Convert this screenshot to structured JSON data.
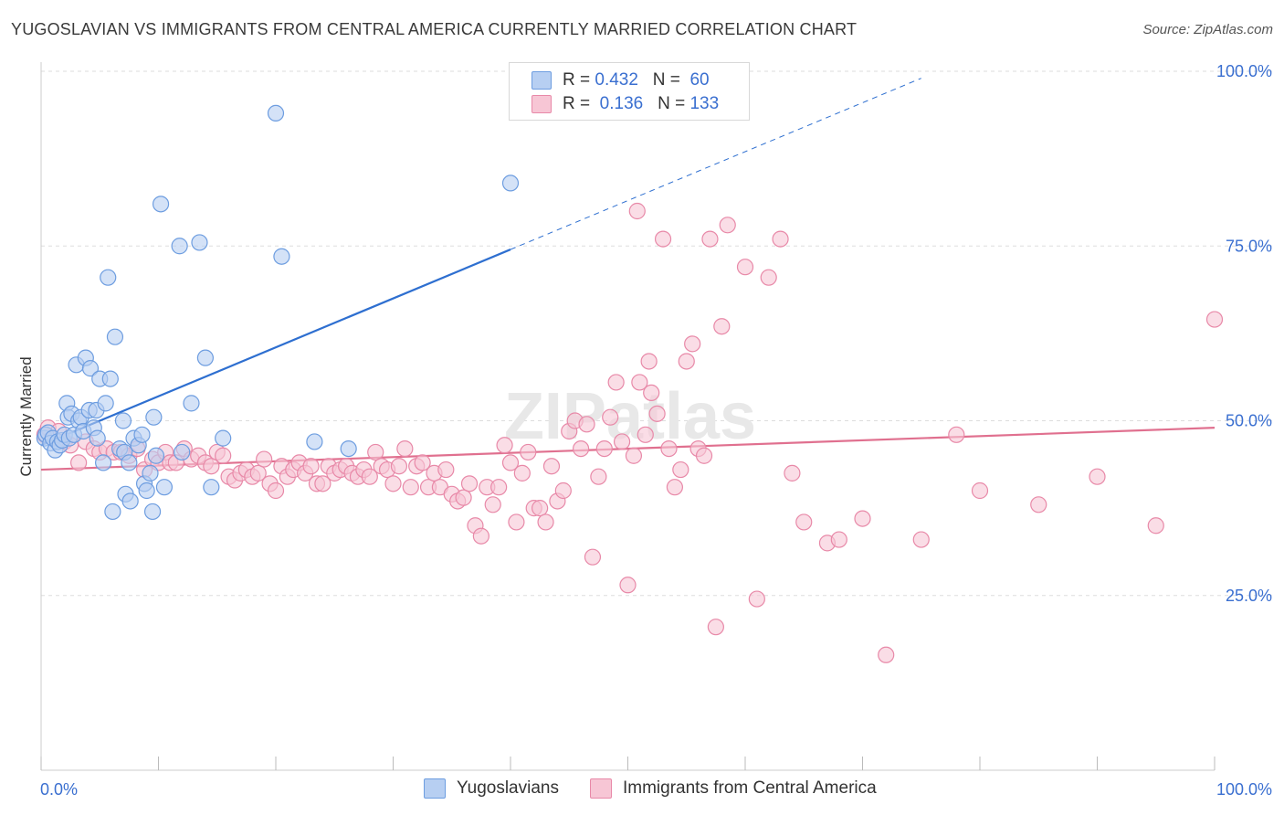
{
  "title": "YUGOSLAVIAN VS IMMIGRANTS FROM CENTRAL AMERICA CURRENTLY MARRIED CORRELATION CHART",
  "source": "Source: ZipAtlas.com",
  "watermark": "ZIPatlas",
  "stats": [
    {
      "r_label": "R =",
      "r_value": "0.432",
      "n_label": "N =",
      "n_value": "60"
    },
    {
      "r_label": "R =",
      "r_value": "0.136",
      "n_label": "N =",
      "n_value": "133"
    }
  ],
  "chart_data": {
    "type": "scatter",
    "title": "YUGOSLAVIAN VS IMMIGRANTS FROM CENTRAL AMERICA CURRENTLY MARRIED CORRELATION CHART",
    "xlabel": "",
    "ylabel": "Currently Married",
    "xlim": [
      0,
      100
    ],
    "ylim": [
      0,
      100
    ],
    "x_tick_labels": [
      "0.0%",
      "100.0%"
    ],
    "y_tick_labels": [
      {
        "value": 25,
        "label": "25.0%"
      },
      {
        "value": 50,
        "label": "50.0%"
      },
      {
        "value": 75,
        "label": "75.0%"
      },
      {
        "value": 100,
        "label": "100.0%"
      }
    ],
    "grid": "horizontal dashed",
    "legend_position": "bottom-center",
    "series": [
      {
        "name": "Yugoslavians",
        "color": "#6d9de0",
        "fill": "#b7cff2",
        "r": 0.432,
        "n": 60,
        "trend": {
          "x0": 0,
          "y0": 46.5,
          "x1": 40,
          "y1": 74.5,
          "extended_to_x": 75,
          "extended_to_y": 99
        },
        "points": [
          [
            0.3,
            47.5
          ],
          [
            0.4,
            48
          ],
          [
            0.6,
            48.3
          ],
          [
            0.8,
            46.8
          ],
          [
            1,
            47.5
          ],
          [
            1.2,
            45.8
          ],
          [
            1.4,
            47
          ],
          [
            1.6,
            46.5
          ],
          [
            1.8,
            47.2
          ],
          [
            2,
            48
          ],
          [
            2.2,
            52.5
          ],
          [
            2.3,
            50.5
          ],
          [
            2.4,
            47.5
          ],
          [
            2.6,
            51
          ],
          [
            2.8,
            48
          ],
          [
            3,
            58
          ],
          [
            3.2,
            50
          ],
          [
            3.4,
            50.5
          ],
          [
            3.6,
            48.5
          ],
          [
            3.8,
            59
          ],
          [
            4.1,
            51.5
          ],
          [
            4.2,
            57.5
          ],
          [
            4.5,
            49
          ],
          [
            4.7,
            51.5
          ],
          [
            4.8,
            47.5
          ],
          [
            5,
            56
          ],
          [
            5.3,
            44
          ],
          [
            5.5,
            52.5
          ],
          [
            5.7,
            70.5
          ],
          [
            5.9,
            56
          ],
          [
            6.1,
            37
          ],
          [
            6.3,
            62
          ],
          [
            6.7,
            46
          ],
          [
            7,
            50
          ],
          [
            7.1,
            45.5
          ],
          [
            7.2,
            39.5
          ],
          [
            7.5,
            44
          ],
          [
            7.6,
            38.5
          ],
          [
            7.9,
            47.5
          ],
          [
            8.3,
            46.5
          ],
          [
            8.6,
            48
          ],
          [
            8.8,
            41
          ],
          [
            9,
            40
          ],
          [
            9.3,
            42.5
          ],
          [
            9.5,
            37
          ],
          [
            9.6,
            50.5
          ],
          [
            9.8,
            45
          ],
          [
            10.2,
            81
          ],
          [
            10.5,
            40.5
          ],
          [
            11.8,
            75
          ],
          [
            12,
            45.5
          ],
          [
            12.8,
            52.5
          ],
          [
            13.5,
            75.5
          ],
          [
            14,
            59
          ],
          [
            14.5,
            40.5
          ],
          [
            15.5,
            47.5
          ],
          [
            20,
            94
          ],
          [
            20.5,
            73.5
          ],
          [
            23.3,
            47
          ],
          [
            26.2,
            46
          ]
        ],
        "extra_points": [
          [
            40,
            84
          ]
        ]
      },
      {
        "name": "Immigrants from Central America",
        "color": "#e889a8",
        "fill": "#f7c6d5",
        "r": 0.136,
        "n": 133,
        "trend": {
          "x0": 0,
          "y0": 43,
          "x1": 100,
          "y1": 49
        },
        "points": [
          [
            0.3,
            48
          ],
          [
            0.6,
            49
          ],
          [
            1,
            47.5
          ],
          [
            1.5,
            48.5
          ],
          [
            2,
            47
          ],
          [
            2.5,
            46.5
          ],
          [
            3.2,
            44
          ],
          [
            3.8,
            47
          ],
          [
            4.5,
            46
          ],
          [
            5,
            45.5
          ],
          [
            5.6,
            46
          ],
          [
            6.2,
            45.5
          ],
          [
            6.8,
            45.5
          ],
          [
            7.5,
            45
          ],
          [
            8.2,
            46
          ],
          [
            8.8,
            43
          ],
          [
            9.5,
            44.5
          ],
          [
            10,
            44
          ],
          [
            10.6,
            45.5
          ],
          [
            11,
            44
          ],
          [
            11.5,
            44
          ],
          [
            12.2,
            46
          ],
          [
            12.8,
            44.5
          ],
          [
            13.4,
            45
          ],
          [
            14,
            44
          ],
          [
            14.5,
            43.5
          ],
          [
            15,
            45.5
          ],
          [
            15.5,
            45
          ],
          [
            16,
            42
          ],
          [
            16.5,
            41.5
          ],
          [
            17,
            42.5
          ],
          [
            17.5,
            43
          ],
          [
            18,
            42
          ],
          [
            18.5,
            42.5
          ],
          [
            19,
            44.5
          ],
          [
            19.5,
            41
          ],
          [
            20,
            40
          ],
          [
            20.5,
            43.5
          ],
          [
            21,
            42
          ],
          [
            21.5,
            43
          ],
          [
            22,
            44
          ],
          [
            22.5,
            42.5
          ],
          [
            23,
            43.5
          ],
          [
            23.5,
            41
          ],
          [
            24,
            41
          ],
          [
            24.5,
            43.5
          ],
          [
            25,
            42.5
          ],
          [
            25.5,
            43
          ],
          [
            26,
            43.5
          ],
          [
            26.5,
            42.5
          ],
          [
            27,
            42
          ],
          [
            27.5,
            43
          ],
          [
            28,
            42
          ],
          [
            28.5,
            45.5
          ],
          [
            29,
            43.5
          ],
          [
            29.5,
            43
          ],
          [
            30,
            41
          ],
          [
            30.5,
            43.5
          ],
          [
            31,
            46
          ],
          [
            31.5,
            40.5
          ],
          [
            32,
            43.5
          ],
          [
            32.5,
            44
          ],
          [
            33,
            40.5
          ],
          [
            33.5,
            42.5
          ],
          [
            34,
            40.5
          ],
          [
            34.5,
            43
          ],
          [
            35,
            39.5
          ],
          [
            35.5,
            38.5
          ],
          [
            36,
            39
          ],
          [
            36.5,
            41
          ],
          [
            37,
            35
          ],
          [
            37.5,
            33.5
          ],
          [
            38,
            40.5
          ],
          [
            38.5,
            38
          ],
          [
            39,
            40.5
          ],
          [
            39.5,
            46.5
          ],
          [
            40,
            44
          ],
          [
            40.5,
            35.5
          ],
          [
            41,
            42.5
          ],
          [
            41.5,
            45.5
          ],
          [
            42,
            37.5
          ],
          [
            42.5,
            37.5
          ],
          [
            43,
            35.5
          ],
          [
            43.5,
            43.5
          ],
          [
            44,
            38.5
          ],
          [
            44.5,
            40
          ],
          [
            45,
            48.5
          ],
          [
            45.5,
            50
          ],
          [
            46,
            46
          ],
          [
            46.5,
            49.5
          ],
          [
            47,
            30.5
          ],
          [
            47.5,
            42
          ],
          [
            48,
            46
          ],
          [
            48.5,
            50.5
          ],
          [
            49,
            55.5
          ],
          [
            49.5,
            47
          ],
          [
            50,
            26.5
          ],
          [
            50.5,
            45
          ],
          [
            51,
            55.5
          ],
          [
            51.5,
            48
          ],
          [
            52,
            54
          ],
          [
            52.5,
            51
          ],
          [
            53,
            76
          ],
          [
            53.5,
            46
          ],
          [
            54,
            40.5
          ],
          [
            54.5,
            43
          ],
          [
            55,
            58.5
          ],
          [
            55.5,
            61
          ],
          [
            56,
            46
          ],
          [
            56.5,
            45
          ],
          [
            57,
            76
          ],
          [
            57.5,
            20.5
          ],
          [
            58,
            63.5
          ],
          [
            58.5,
            78
          ],
          [
            60,
            72
          ],
          [
            61,
            24.5
          ],
          [
            62,
            70.5
          ],
          [
            63,
            76
          ],
          [
            64,
            42.5
          ],
          [
            65,
            35.5
          ],
          [
            67,
            32.5
          ],
          [
            68,
            33
          ],
          [
            70,
            36
          ],
          [
            72,
            16.5
          ],
          [
            75,
            33
          ],
          [
            78,
            48
          ],
          [
            80,
            40
          ],
          [
            85,
            38
          ],
          [
            90,
            42
          ],
          [
            95,
            35
          ],
          [
            50.8,
            80
          ],
          [
            51.8,
            58.5
          ],
          [
            100,
            64.5
          ]
        ]
      }
    ]
  },
  "legend": [
    {
      "label": "Yugoslavians"
    },
    {
      "label": "Immigrants from Central America"
    }
  ]
}
